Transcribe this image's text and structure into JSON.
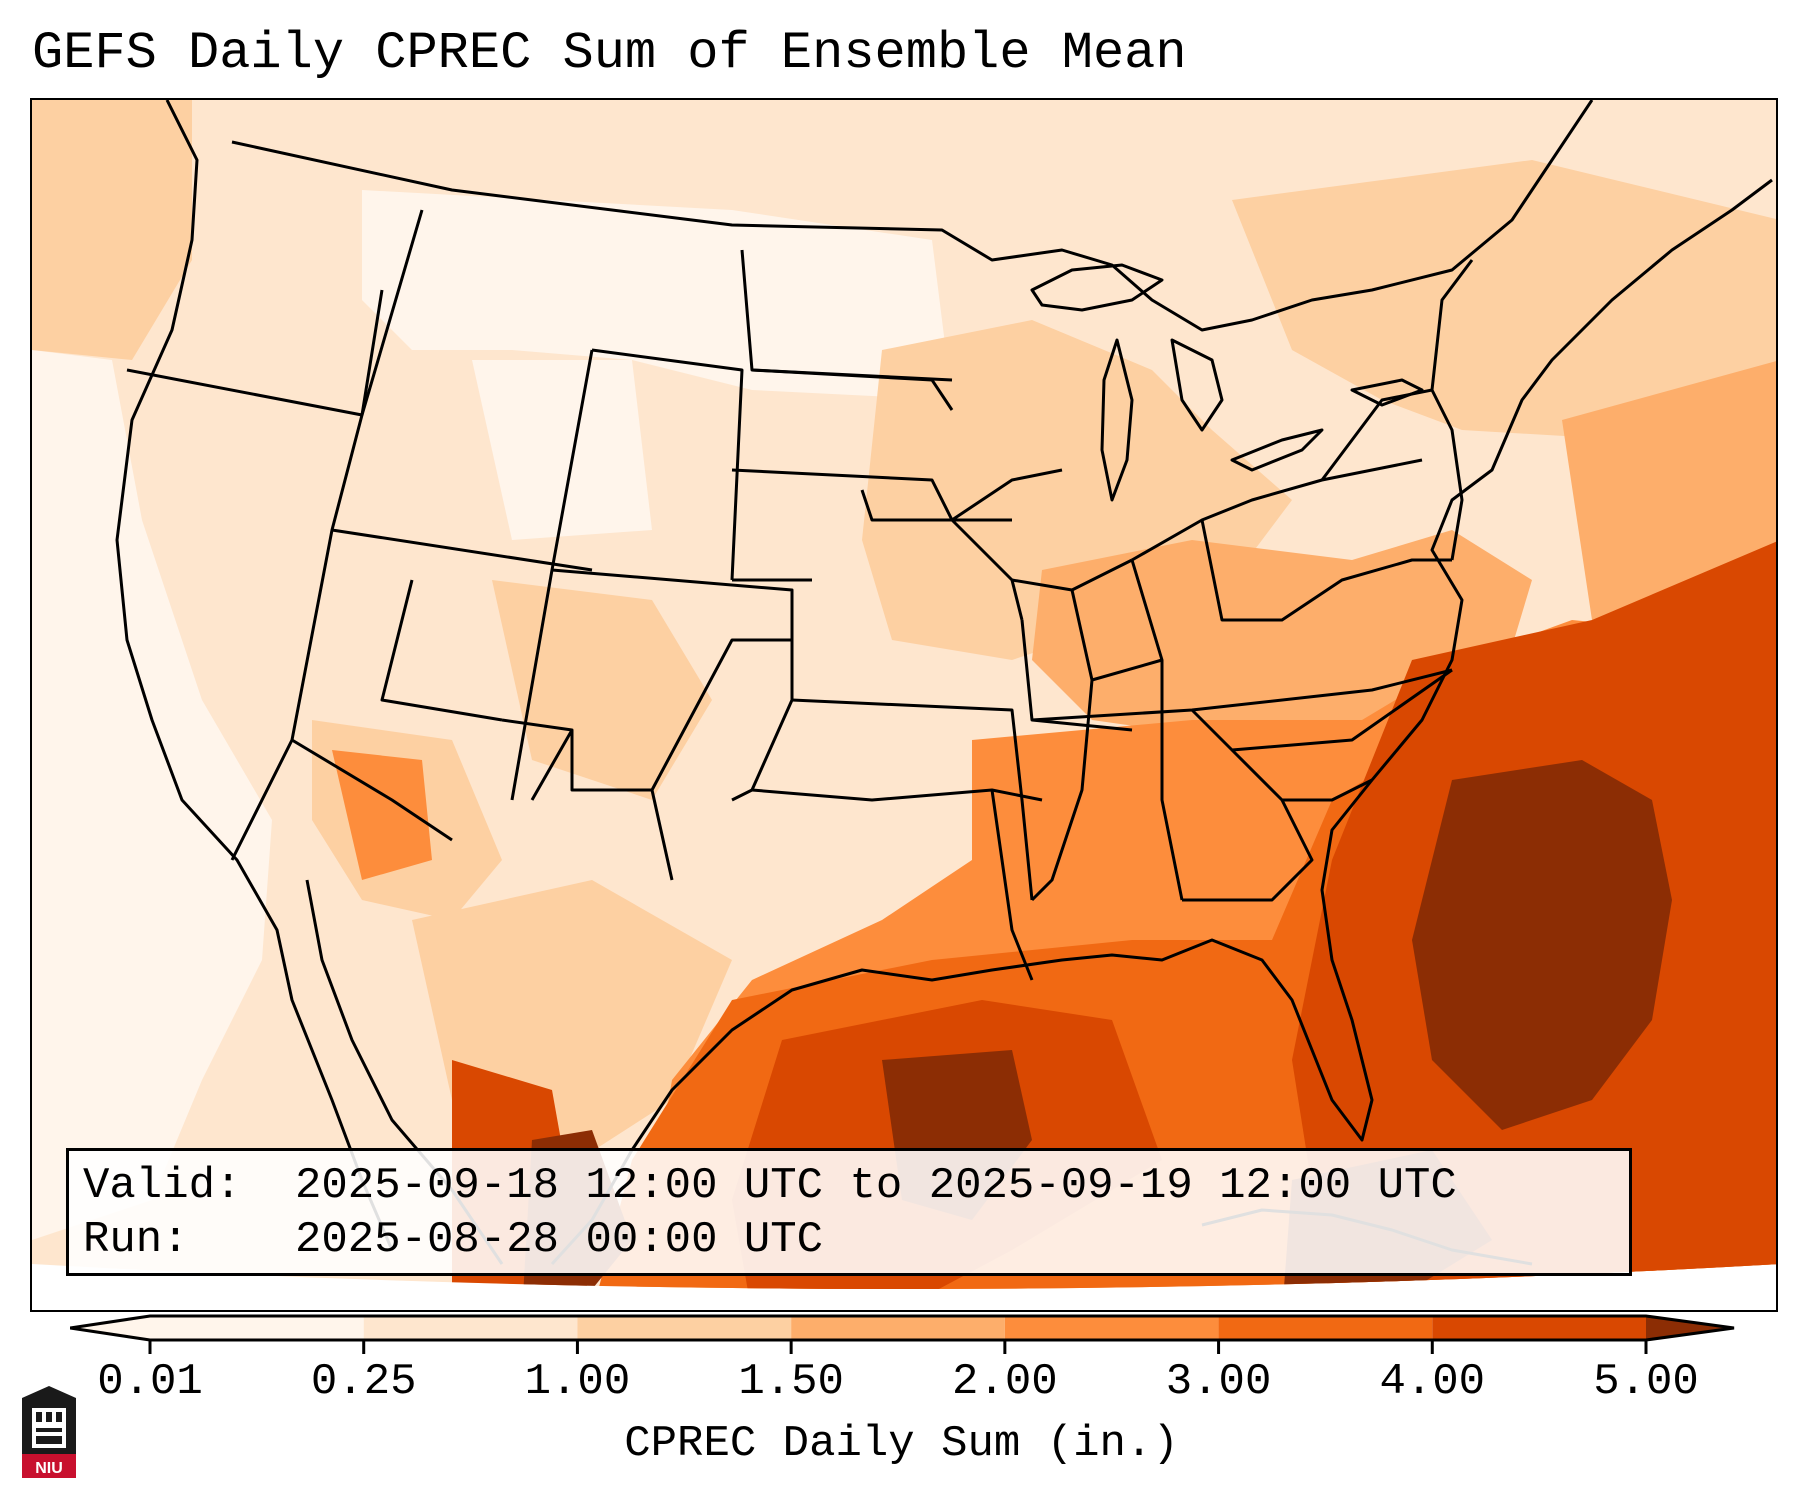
{
  "title": "GEFS Daily CPREC Sum of Ensemble Mean",
  "info": {
    "valid_label": "Valid:",
    "valid_value": "2025-09-18 12:00 UTC to 2025-09-19 12:00 UTC",
    "run_label": "Run:",
    "run_value": "2025-08-28 00:00 UTC"
  },
  "colorbar": {
    "label": "CPREC Daily Sum (in.)",
    "ticks": [
      "0.01",
      "0.25",
      "1.00",
      "1.50",
      "2.00",
      "3.00",
      "4.00",
      "5.00"
    ],
    "colors": [
      "#fff5eb",
      "#fee6ce",
      "#fdd0a2",
      "#fdae6b",
      "#fd8d3c",
      "#f16913",
      "#d94801",
      "#8c2d04"
    ],
    "extend": "both"
  },
  "logo": {
    "text": "NIU",
    "colors": {
      "red": "#c8102e",
      "dark": "#1a1a1a"
    }
  },
  "map": {
    "region": "contiguous-united-states",
    "projection": "lambert-conformal",
    "colors": {
      "c0": "#fff5eb",
      "c1": "#fee6ce",
      "c2": "#fdd0a2",
      "c3": "#fdae6b",
      "c4": "#fd8d3c",
      "c5": "#f16913",
      "c6": "#d94801",
      "c7": "#8c2d04"
    }
  }
}
